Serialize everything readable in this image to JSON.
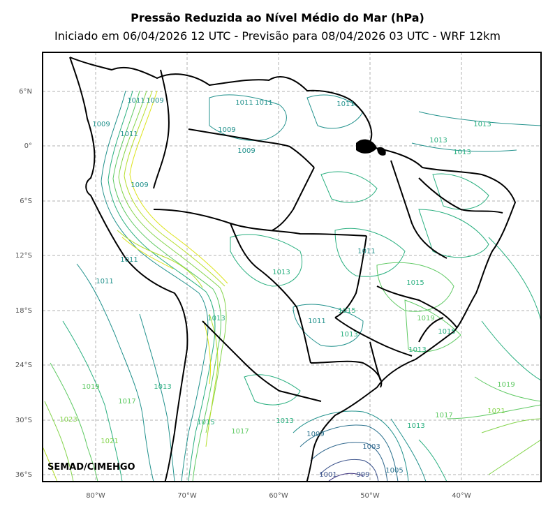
{
  "title": "Pressão Reduzida ao Nível Médio do Mar (hPa)",
  "subtitle": "Iniciado em 06/04/2026 12 UTC - Previsão para 08/04/2026 03 UTC - WRF 12km",
  "credit": "SEMAD/CIMEHGO",
  "lat_labels": [
    "6°N",
    "0°",
    "6°S",
    "12°S",
    "18°S",
    "24°S",
    "30°S",
    "36°S"
  ],
  "lon_labels": [
    "80°W",
    "70°W",
    "60°W",
    "50°W",
    "40°W"
  ],
  "contour_labels": [
    {
      "text": "1009",
      "color": "#21918c"
    },
    {
      "text": "1011",
      "color": "#21918c"
    },
    {
      "text": "1011",
      "color": "#21918c"
    },
    {
      "text": "1011",
      "color": "#21918c"
    },
    {
      "text": "1009",
      "color": "#21918c"
    },
    {
      "text": "1009",
      "color": "#21918c"
    },
    {
      "text": "1009",
      "color": "#21918c"
    },
    {
      "text": "1011",
      "color": "#21918c"
    },
    {
      "text": "1013",
      "color": "#29af7f"
    },
    {
      "text": "1013",
      "color": "#29af7f"
    },
    {
      "text": "1013",
      "color": "#29af7f"
    },
    {
      "text": "1011",
      "color": "#21918c"
    },
    {
      "text": "1009",
      "color": "#21918c"
    },
    {
      "text": "1011",
      "color": "#21918c"
    },
    {
      "text": "1013",
      "color": "#29af7f"
    },
    {
      "text": "1011",
      "color": "#21918c"
    },
    {
      "text": "1013",
      "color": "#29af7f"
    },
    {
      "text": "1015",
      "color": "#29af7f"
    },
    {
      "text": "1013",
      "color": "#29af7f"
    },
    {
      "text": "1015",
      "color": "#29af7f"
    },
    {
      "text": "1019",
      "color": "#5ec962"
    },
    {
      "text": "1011",
      "color": "#21918c"
    },
    {
      "text": "1013",
      "color": "#29af7f"
    },
    {
      "text": "1019",
      "color": "#5ec962"
    },
    {
      "text": "1017",
      "color": "#5ec962"
    },
    {
      "text": "1023",
      "color": "#84d44b"
    },
    {
      "text": "1021",
      "color": "#84d44b"
    },
    {
      "text": "1013",
      "color": "#29af7f"
    },
    {
      "text": "1019",
      "color": "#5ec962"
    },
    {
      "text": "1021",
      "color": "#84d44b"
    },
    {
      "text": "1017",
      "color": "#5ec962"
    },
    {
      "text": "1015",
      "color": "#29af7f"
    },
    {
      "text": "1017",
      "color": "#5ec962"
    },
    {
      "text": "1013",
      "color": "#29af7f"
    },
    {
      "text": "1013",
      "color": "#29af7f"
    },
    {
      "text": "1009",
      "color": "#2c728e"
    },
    {
      "text": "1003",
      "color": "#31688e"
    },
    {
      "text": "1005",
      "color": "#2c728e"
    },
    {
      "text": "1001",
      "color": "#3b528b"
    },
    {
      "text": "999",
      "color": "#3b528b"
    },
    {
      "text": "1011",
      "color": "#21918c"
    },
    {
      "text": "1015",
      "color": "#29af7f"
    }
  ]
}
